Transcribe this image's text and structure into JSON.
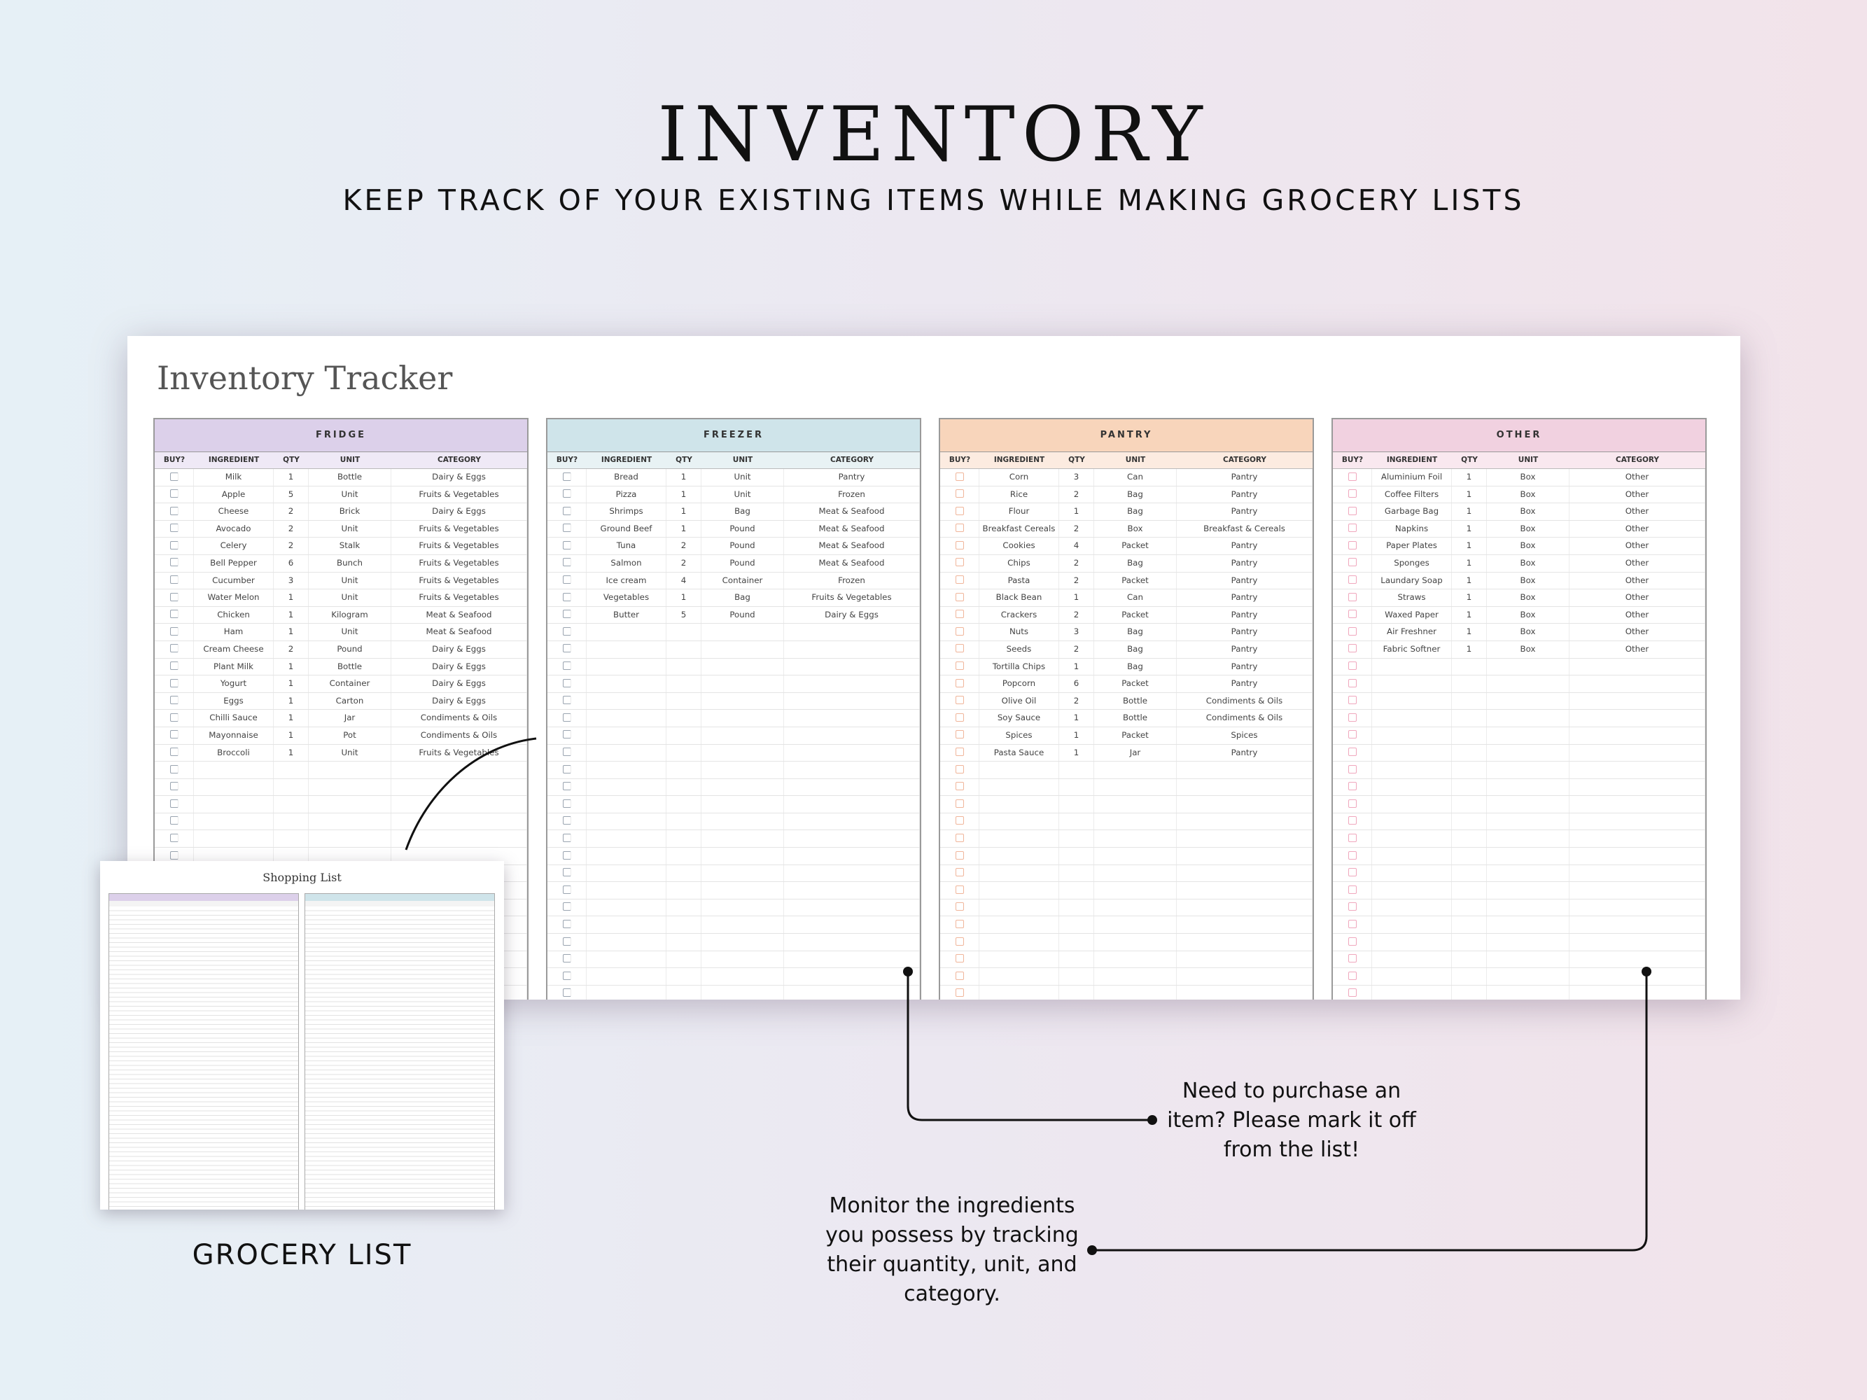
{
  "hero": {
    "title": "INVENTORY",
    "subtitle": "KEEP TRACK OF YOUR EXISTING ITEMS WHILE MAKING GROCERY LISTS"
  },
  "sheet": {
    "title": "Inventory Tracker",
    "columns": [
      "BUY?",
      "INGREDIENT",
      "QTY",
      "UNIT",
      "CATEGORY"
    ],
    "sections": [
      {
        "name": "FRIDGE",
        "color": "#dcd0ea",
        "rows": [
          [
            "Milk",
            "1",
            "Bottle",
            "Dairy & Eggs"
          ],
          [
            "Apple",
            "5",
            "Unit",
            "Fruits & Vegetables"
          ],
          [
            "Cheese",
            "2",
            "Brick",
            "Dairy & Eggs"
          ],
          [
            "Avocado",
            "2",
            "Unit",
            "Fruits & Vegetables"
          ],
          [
            "Celery",
            "2",
            "Stalk",
            "Fruits & Vegetables"
          ],
          [
            "Bell Pepper",
            "6",
            "Bunch",
            "Fruits & Vegetables"
          ],
          [
            "Cucumber",
            "3",
            "Unit",
            "Fruits & Vegetables"
          ],
          [
            "Water Melon",
            "1",
            "Unit",
            "Fruits & Vegetables"
          ],
          [
            "Chicken",
            "1",
            "Kilogram",
            "Meat & Seafood"
          ],
          [
            "Ham",
            "1",
            "Unit",
            "Meat & Seafood"
          ],
          [
            "Cream Cheese",
            "2",
            "Pound",
            "Dairy & Eggs"
          ],
          [
            "Plant Milk",
            "1",
            "Bottle",
            "Dairy & Eggs"
          ],
          [
            "Yogurt",
            "1",
            "Container",
            "Dairy & Eggs"
          ],
          [
            "Eggs",
            "1",
            "Carton",
            "Dairy & Eggs"
          ],
          [
            "Chilli Sauce",
            "1",
            "Jar",
            "Condiments & Oils"
          ],
          [
            "Mayonnaise",
            "1",
            "Pot",
            "Condiments & Oils"
          ],
          [
            "Broccoli",
            "1",
            "Unit",
            "Fruits & Vegetables"
          ]
        ]
      },
      {
        "name": "FREEZER",
        "color": "#cfe4ea",
        "rows": [
          [
            "Bread",
            "1",
            "Unit",
            "Pantry"
          ],
          [
            "Pizza",
            "1",
            "Unit",
            "Frozen"
          ],
          [
            "Shrimps",
            "1",
            "Bag",
            "Meat & Seafood"
          ],
          [
            "Ground Beef",
            "1",
            "Pound",
            "Meat & Seafood"
          ],
          [
            "Tuna",
            "2",
            "Pound",
            "Meat & Seafood"
          ],
          [
            "Salmon",
            "2",
            "Pound",
            "Meat & Seafood"
          ],
          [
            "Ice cream",
            "4",
            "Container",
            "Frozen"
          ],
          [
            "Vegetables",
            "1",
            "Bag",
            "Fruits & Vegetables"
          ],
          [
            "Butter",
            "5",
            "Pound",
            "Dairy & Eggs"
          ]
        ]
      },
      {
        "name": "PANTRY",
        "color": "#f8d5bb",
        "rows": [
          [
            "Corn",
            "3",
            "Can",
            "Pantry"
          ],
          [
            "Rice",
            "2",
            "Bag",
            "Pantry"
          ],
          [
            "Flour",
            "1",
            "Bag",
            "Pantry"
          ],
          [
            "Breakfast Cereals",
            "2",
            "Box",
            "Breakfast & Cereals"
          ],
          [
            "Cookies",
            "4",
            "Packet",
            "Pantry"
          ],
          [
            "Chips",
            "2",
            "Bag",
            "Pantry"
          ],
          [
            "Pasta",
            "2",
            "Packet",
            "Pantry"
          ],
          [
            "Black Bean",
            "1",
            "Can",
            "Pantry"
          ],
          [
            "Crackers",
            "2",
            "Packet",
            "Pantry"
          ],
          [
            "Nuts",
            "3",
            "Bag",
            "Pantry"
          ],
          [
            "Seeds",
            "2",
            "Bag",
            "Pantry"
          ],
          [
            "Tortilla Chips",
            "1",
            "Bag",
            "Pantry"
          ],
          [
            "Popcorn",
            "6",
            "Packet",
            "Pantry"
          ],
          [
            "Olive Oil",
            "2",
            "Bottle",
            "Condiments & Oils"
          ],
          [
            "Soy Sauce",
            "1",
            "Bottle",
            "Condiments & Oils"
          ],
          [
            "Spices",
            "1",
            "Packet",
            "Spices"
          ],
          [
            "Pasta Sauce",
            "1",
            "Jar",
            "Pantry"
          ]
        ]
      },
      {
        "name": "OTHER",
        "color": "#f1d1e0",
        "rows": [
          [
            "Aluminium Foil",
            "1",
            "Box",
            "Other"
          ],
          [
            "Coffee Filters",
            "1",
            "Box",
            "Other"
          ],
          [
            "Garbage Bag",
            "1",
            "Box",
            "Other"
          ],
          [
            "Napkins",
            "1",
            "Box",
            "Other"
          ],
          [
            "Paper Plates",
            "1",
            "Box",
            "Other"
          ],
          [
            "Sponges",
            "1",
            "Box",
            "Other"
          ],
          [
            "Laundary Soap",
            "1",
            "Box",
            "Other"
          ],
          [
            "Straws",
            "1",
            "Box",
            "Other"
          ],
          [
            "Waxed Paper",
            "1",
            "Box",
            "Other"
          ],
          [
            "Air Freshner",
            "1",
            "Box",
            "Other"
          ],
          [
            "Fabric Softner",
            "1",
            "Box",
            "Other"
          ]
        ]
      }
    ]
  },
  "shopping_preview": {
    "title": "Shopping List"
  },
  "labels": {
    "grocery_list": "GROCERY LIST",
    "callout_purchase": "Need to purchase an item? Please mark it off from the list!",
    "callout_monitor": "Monitor the ingredients you possess by tracking their quantity, unit, and category."
  }
}
